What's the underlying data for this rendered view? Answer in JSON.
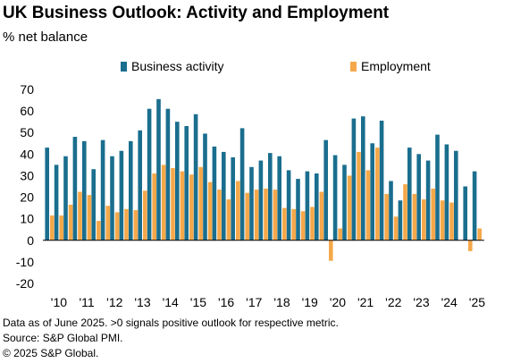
{
  "chart_data": {
    "type": "bar",
    "title": "UK Business Outlook: Activity and Employment",
    "subtitle": "% net balance",
    "ylim": [
      -20,
      70
    ],
    "yticks": [
      -20,
      -10,
      0,
      10,
      20,
      30,
      40,
      50,
      60,
      70
    ],
    "legend_position": "top",
    "x_tick_labels": [
      "'10",
      "'11",
      "'12",
      "'13",
      "'14",
      "'15",
      "'16",
      "'17",
      "'18",
      "'19",
      "'20",
      "'21",
      "'22",
      "'23",
      "'24",
      "'25"
    ],
    "series": [
      {
        "name": "Business activity",
        "color": "#1a6e8e",
        "values": [
          43,
          35,
          39,
          48,
          46,
          33,
          46.5,
          39,
          41.5,
          46,
          51,
          61,
          65.5,
          61,
          55,
          53,
          58.5,
          49.5,
          43.5,
          41,
          38.5,
          52,
          34,
          37,
          40.5,
          39,
          32.5,
          28.5,
          32,
          31,
          46.5,
          39.5,
          35,
          56.5,
          57.5,
          45,
          55.5,
          27.5,
          18.5,
          43,
          40,
          37,
          49,
          44.5,
          41.5,
          25,
          32
        ]
      },
      {
        "name": "Employment",
        "color": "#f5a84a",
        "values": [
          11.5,
          11.5,
          16.5,
          22.5,
          21,
          9,
          16,
          13,
          14.5,
          14,
          23,
          31,
          35,
          33.5,
          32,
          30.5,
          34,
          27,
          23.5,
          19,
          27.5,
          22,
          23.5,
          24,
          23.5,
          15,
          14.5,
          13.5,
          15.5,
          22.5,
          -9.5,
          5.5,
          30,
          41,
          32.5,
          43,
          21.5,
          11,
          26,
          21.5,
          19,
          24,
          18.5,
          17.5,
          0,
          -5,
          5.5
        ]
      }
    ]
  },
  "footer": {
    "note": "Data as of June 2025. >0 signals positive outlook for respective metric.",
    "source": "Source: S&P Global PMI.",
    "copyright": "© 2025 S&P Global."
  }
}
